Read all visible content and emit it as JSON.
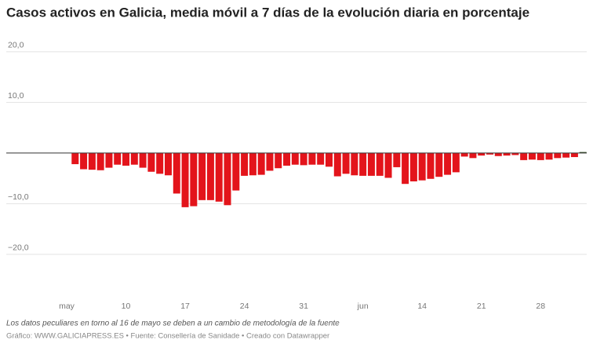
{
  "chart_data": {
    "type": "bar",
    "title": "Casos activos en Galicia, media móvil a 7 días de la evolución diaria en porcentaje",
    "notes": "Los datos peculiares en torno al 16 de mayo se deben a un cambio de metodología de la fuente",
    "source": "Gráfico: WWW.GALICIAPRESS.ES • Fuente: Consellería de Sanidade • Creado con Datawrapper",
    "categories": [
      "may",
      null,
      null,
      null,
      null,
      null,
      null,
      "10",
      null,
      null,
      null,
      null,
      null,
      null,
      "17",
      null,
      null,
      null,
      null,
      null,
      null,
      "24",
      null,
      null,
      null,
      null,
      null,
      null,
      "31",
      null,
      null,
      null,
      null,
      null,
      null,
      "jun",
      null,
      null,
      null,
      null,
      null,
      null,
      "14",
      null,
      null,
      null,
      null,
      null,
      null,
      "21",
      null,
      null,
      null,
      null,
      null,
      null,
      "28",
      null,
      null,
      null,
      null,
      null
    ],
    "values": [
      null,
      -2.2,
      -3.2,
      -3.3,
      -3.4,
      -2.9,
      -2.3,
      -2.5,
      -2.3,
      -2.9,
      -3.7,
      -4.1,
      -4.4,
      -8.0,
      -10.7,
      -10.5,
      -9.3,
      -9.3,
      -9.6,
      -10.3,
      -7.4,
      -4.5,
      -4.4,
      -4.3,
      -3.5,
      -3.0,
      -2.5,
      -2.3,
      -2.4,
      -2.3,
      -2.3,
      -2.7,
      -4.6,
      -4.1,
      -4.4,
      -4.5,
      -4.5,
      -4.5,
      -4.9,
      -2.8,
      -6.1,
      -5.6,
      -5.4,
      -5.1,
      -4.7,
      -4.3,
      -3.8,
      -0.7,
      -1.0,
      -0.5,
      -0.3,
      -0.6,
      -0.5,
      -0.4,
      -1.4,
      -1.3,
      -1.4,
      -1.3,
      -1.0,
      -0.9,
      -0.8,
      0.2
    ],
    "color_negative": "#e3141b",
    "color_positive": "#3b5a2c",
    "ylim": [
      -27,
      22
    ],
    "yticks": [
      {
        "value": 20,
        "label": "20,0"
      },
      {
        "value": 10,
        "label": "10,0"
      },
      {
        "value": -10,
        "label": "−10,0"
      },
      {
        "value": -20,
        "label": "−20,0"
      }
    ],
    "grid": true
  }
}
